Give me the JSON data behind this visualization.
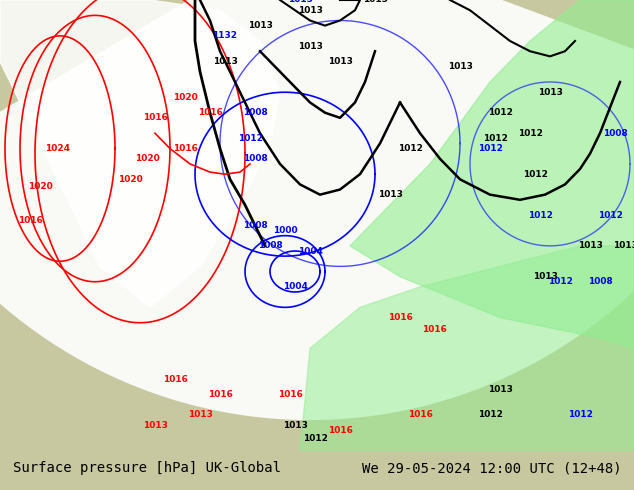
{
  "title_left": "Surface pressure [hPa] UK-Global",
  "title_right": "We 29-05-2024 12:00 UTC (12+48)",
  "bg_color": "#c8c8a0",
  "map_bg_color": "#d4d4b0",
  "sea_color_light": "#e8f4e8",
  "label_color": "#000000",
  "label_fontsize": 10,
  "fig_width": 6.34,
  "fig_height": 4.9,
  "dpi": 100
}
